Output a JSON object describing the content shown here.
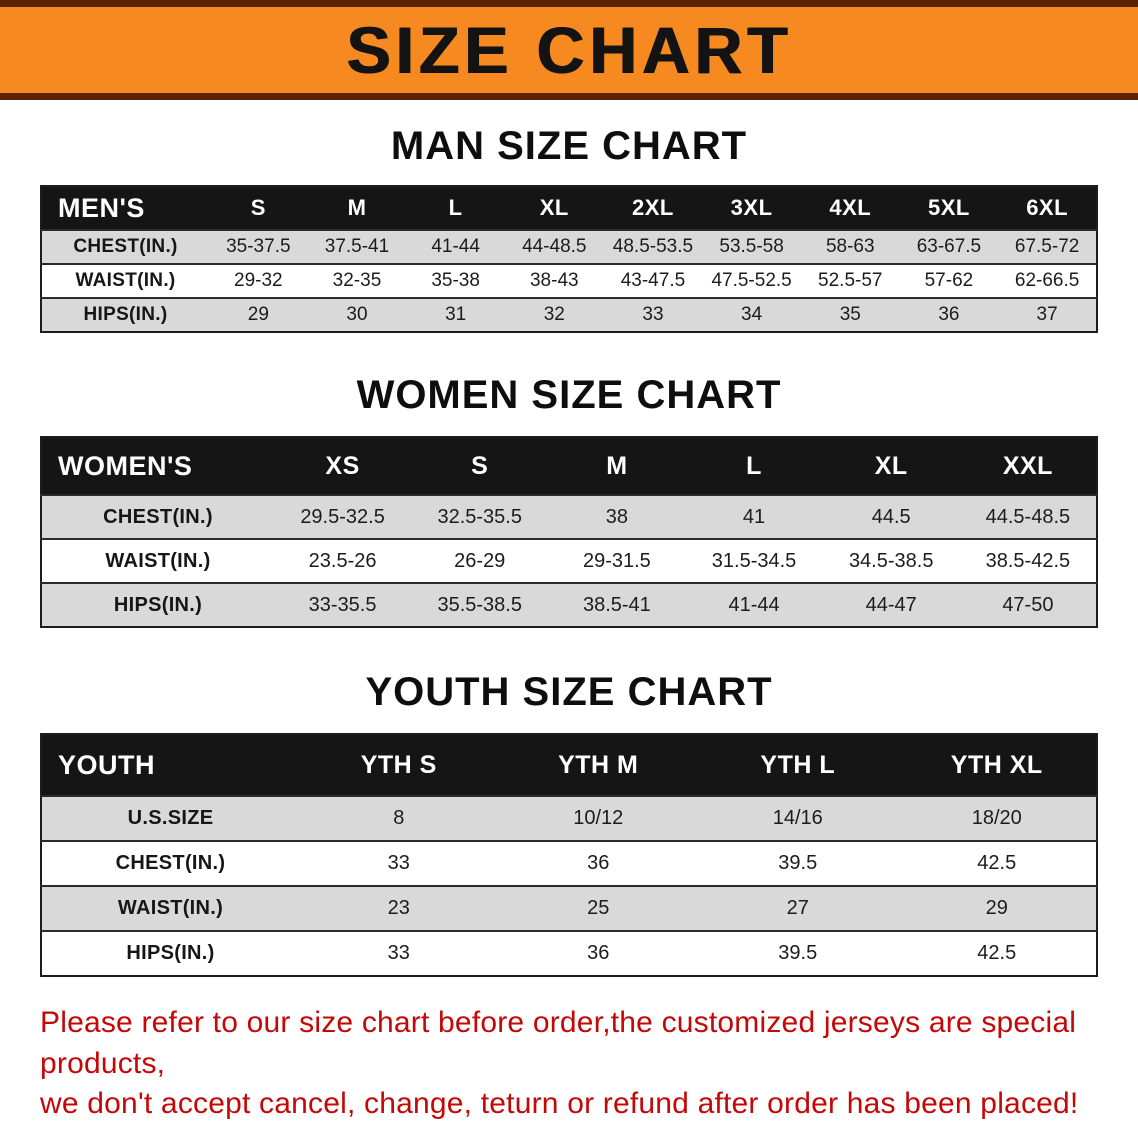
{
  "banner": {
    "title": "SIZE CHART"
  },
  "colors": {
    "banner_orange": "#f6891f",
    "banner_border": "#5a2403",
    "header_black": "#151515",
    "row_shaded_gray": "#d9d9d9",
    "note_red": "#c40808"
  },
  "sections": [
    {
      "heading": "MAN SIZE CHART",
      "table": {
        "label": "MEN'S",
        "columns": [
          "S",
          "M",
          "L",
          "XL",
          "2XL",
          "3XL",
          "4XL",
          "5XL",
          "6XL"
        ],
        "rows": [
          {
            "label": "CHEST(IN.)",
            "values": [
              "35-37.5",
              "37.5-41",
              "41-44",
              "44-48.5",
              "48.5-53.5",
              "53.5-58",
              "58-63",
              "63-67.5",
              "67.5-72"
            ]
          },
          {
            "label": "WAIST(IN.)",
            "values": [
              "29-32",
              "32-35",
              "35-38",
              "38-43",
              "43-47.5",
              "47.5-52.5",
              "52.5-57",
              "57-62",
              "62-66.5"
            ]
          },
          {
            "label": "HIPS(IN.)",
            "values": [
              "29",
              "30",
              "31",
              "32",
              "33",
              "34",
              "35",
              "36",
              "37"
            ]
          }
        ]
      }
    },
    {
      "heading": "WOMEN SIZE CHART",
      "table": {
        "label": "WOMEN'S",
        "columns": [
          "XS",
          "S",
          "M",
          "L",
          "XL",
          "XXL"
        ],
        "rows": [
          {
            "label": "CHEST(IN.)",
            "values": [
              "29.5-32.5",
              "32.5-35.5",
              "38",
              "41",
              "44.5",
              "44.5-48.5"
            ]
          },
          {
            "label": "WAIST(IN.)",
            "values": [
              "23.5-26",
              "26-29",
              "29-31.5",
              "31.5-34.5",
              "34.5-38.5",
              "38.5-42.5"
            ]
          },
          {
            "label": "HIPS(IN.)",
            "values": [
              "33-35.5",
              "35.5-38.5",
              "38.5-41",
              "41-44",
              "44-47",
              "47-50"
            ]
          }
        ]
      }
    },
    {
      "heading": "YOUTH SIZE CHART",
      "table": {
        "label": "YOUTH",
        "columns": [
          "YTH S",
          "YTH M",
          "YTH L",
          "YTH XL"
        ],
        "rows": [
          {
            "label": "U.S.SIZE",
            "values": [
              "8",
              "10/12",
              "14/16",
              "18/20"
            ]
          },
          {
            "label": "CHEST(IN.)",
            "values": [
              "33",
              "36",
              "39.5",
              "42.5"
            ]
          },
          {
            "label": "WAIST(IN.)",
            "values": [
              "23",
              "25",
              "27",
              "29"
            ]
          },
          {
            "label": "HIPS(IN.)",
            "values": [
              "33",
              "36",
              "39.5",
              "42.5"
            ]
          }
        ]
      }
    }
  ],
  "note": {
    "line1": "Please refer to our size chart before order,the customized jerseys are special products,",
    "line2": "we don't accept cancel, change, teturn or refund after order has been placed!"
  }
}
